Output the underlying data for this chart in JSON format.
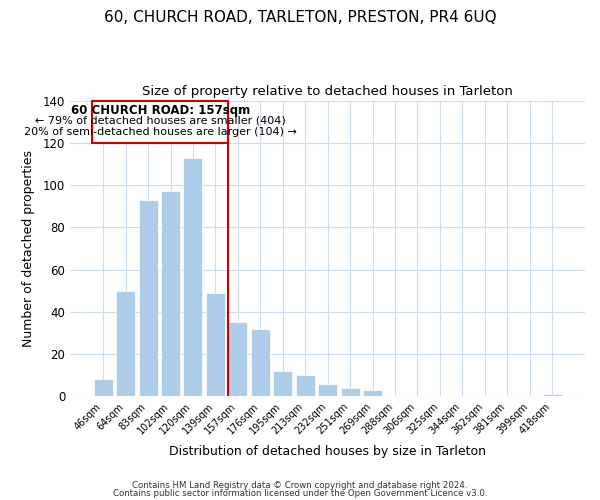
{
  "title": "60, CHURCH ROAD, TARLETON, PRESTON, PR4 6UQ",
  "subtitle": "Size of property relative to detached houses in Tarleton",
  "xlabel": "Distribution of detached houses by size in Tarleton",
  "ylabel": "Number of detached properties",
  "bar_labels": [
    "46sqm",
    "64sqm",
    "83sqm",
    "102sqm",
    "120sqm",
    "139sqm",
    "157sqm",
    "176sqm",
    "195sqm",
    "213sqm",
    "232sqm",
    "251sqm",
    "269sqm",
    "288sqm",
    "306sqm",
    "325sqm",
    "344sqm",
    "362sqm",
    "381sqm",
    "399sqm",
    "418sqm"
  ],
  "bar_values": [
    8,
    50,
    93,
    97,
    113,
    49,
    35,
    32,
    12,
    10,
    6,
    4,
    3,
    0,
    0,
    0,
    0,
    0,
    0,
    0,
    1
  ],
  "highlight_index": 6,
  "bar_color": "#aecde8",
  "highlight_line_color": "#cc0000",
  "ylim": [
    0,
    140
  ],
  "yticks": [
    0,
    20,
    40,
    60,
    80,
    100,
    120,
    140
  ],
  "annotation_title": "60 CHURCH ROAD: 157sqm",
  "annotation_line1": "← 79% of detached houses are smaller (404)",
  "annotation_line2": "20% of semi-detached houses are larger (104) →",
  "footer1": "Contains HM Land Registry data © Crown copyright and database right 2024.",
  "footer2": "Contains public sector information licensed under the Open Government Licence v3.0.",
  "background_color": "#ffffff",
  "grid_color": "#ccddf0",
  "box_edge_color": "#cc0000",
  "title_fontsize": 11,
  "subtitle_fontsize": 9.5,
  "bar_width": 0.85
}
